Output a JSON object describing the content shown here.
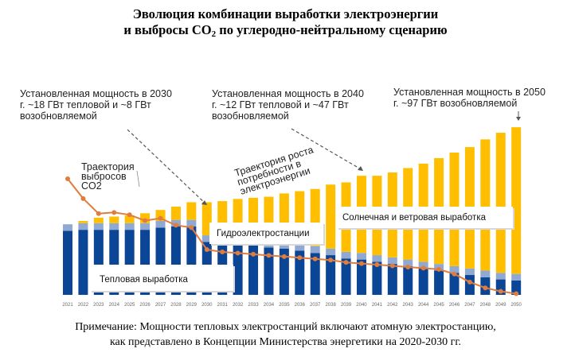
{
  "header": {
    "title_line1": "Эволюция комбинации выработки электроэнергии",
    "title_line2_pre": "и выбросы CO",
    "title_line2_sub": "2",
    "title_line2_post": " по углеродно-нейтральному сценарию"
  },
  "annotations": {
    "a2030": [
      "Установленная мощность в 2030",
      "г. ~18 ГВт тепловой и ~8 ГВт",
      "возобновляемой"
    ],
    "a2040": [
      "Установленная мощность в 2040",
      "г. ~12 ГВт тепловой и ~47 ГВт",
      "возобновляемой"
    ],
    "a2050": [
      "Установленная мощность в 2050",
      "г. ~97 ГВт возобновляемой"
    ],
    "co2_traj": [
      "Траектория",
      "выбросов",
      "CO2"
    ],
    "demand_traj": [
      "Траектория роста",
      "потребности в",
      "электроэнергии"
    ]
  },
  "labels": {
    "thermal": "Тепловая выработка",
    "hydro": "Гидроэлектростанции",
    "solar_wind": "Солнечная и ветровая выработка"
  },
  "note": {
    "line1": "Примечание: Мощности тепловых электростанций включают атомную электростанцию,",
    "line2": "как представлено в Концепции Министерства энергетики на 2020-2030 гг."
  },
  "colors": {
    "thermal": "#0B4595",
    "hydro": "#8FA9D2",
    "renewable": "#FFBF00",
    "co2": "#E07D3E"
  },
  "chart_data": {
    "type": "bar",
    "stacked": true,
    "categories": [
      "2021",
      "2022",
      "2023",
      "2024",
      "2025",
      "2026",
      "2027",
      "2028",
      "2029",
      "2030",
      "2031",
      "2032",
      "2033",
      "2034",
      "2035",
      "2036",
      "2037",
      "2038",
      "2039",
      "2040",
      "2041",
      "2042",
      "2043",
      "2044",
      "2045",
      "2046",
      "2047",
      "2048",
      "2049",
      "2050"
    ],
    "series": [
      {
        "name": "Тепловая выработка",
        "values": [
          58,
          59,
          59,
          59,
          59,
          59,
          61,
          62,
          62,
          48,
          47,
          46,
          45,
          43,
          42,
          40,
          38,
          36,
          33,
          32,
          30,
          28,
          26,
          24,
          22,
          20,
          18,
          16,
          14,
          13
        ]
      },
      {
        "name": "Гидроэлектростанции",
        "values": [
          6,
          6,
          6,
          6,
          6,
          6,
          6,
          6,
          6,
          6,
          6,
          6,
          6,
          6,
          6,
          6,
          6,
          6,
          6,
          6,
          6,
          6,
          6,
          6,
          6,
          6,
          6,
          6,
          6,
          6
        ]
      },
      {
        "name": "Солнечная и ветровая выработка",
        "values": [
          0,
          2,
          5,
          6,
          7,
          9,
          10,
          12,
          16,
          30,
          32,
          35,
          37,
          40,
          44,
          48,
          52,
          58,
          63,
          70,
          72,
          77,
          83,
          89,
          96,
          103,
          110,
          119,
          127,
          133
        ]
      }
    ],
    "co2_series": {
      "name": "Траектория выбросов CO2",
      "values": [
        100,
        83,
        70,
        71,
        69,
        64,
        66,
        60,
        58,
        39,
        37,
        36,
        35,
        34,
        33,
        32,
        31,
        30,
        28,
        27,
        26,
        25,
        24,
        23,
        22,
        18,
        11,
        6,
        3,
        1
      ]
    },
    "ylim": [
      0,
      160
    ],
    "xlabel": "",
    "ylabel": ""
  }
}
